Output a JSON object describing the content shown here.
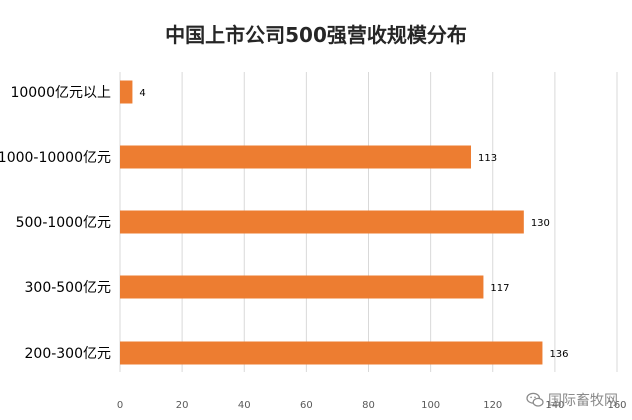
{
  "chart_data": {
    "type": "bar",
    "orientation": "horizontal",
    "title": "中国上市公司500强营收规模分布",
    "categories": [
      "10000亿元以上",
      "1000-10000亿元",
      "500-1000亿元",
      "300-500亿元",
      "200-300亿元"
    ],
    "values": [
      4,
      113,
      130,
      117,
      136
    ],
    "xlim": [
      0,
      160
    ],
    "xticks": [
      "0",
      "20",
      "40",
      "60",
      "80",
      "100",
      "120",
      "140",
      "160"
    ],
    "xlabel": "",
    "ylabel": "",
    "grid": true,
    "data_labels": true,
    "bar_color": "#ED7D31"
  },
  "watermark": {
    "text": "国际畜牧网",
    "icon": "wechat-icon"
  }
}
